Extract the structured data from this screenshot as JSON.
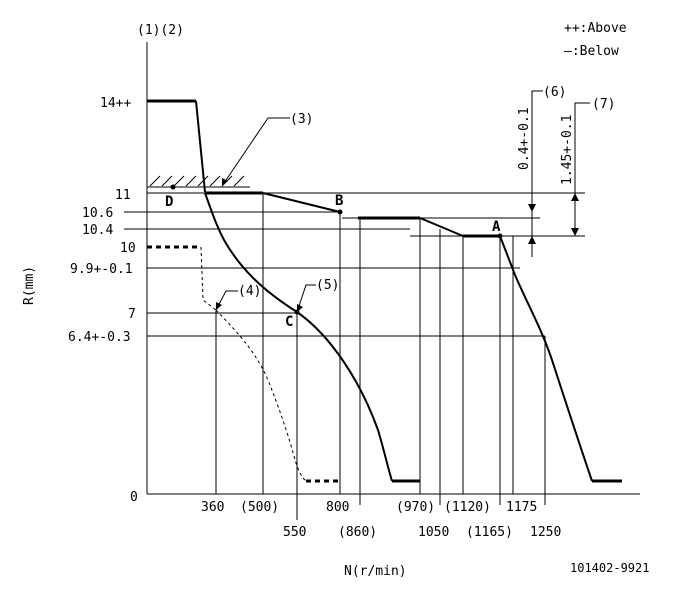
{
  "legend": {
    "above": "++:Above",
    "below": "—:Below"
  },
  "y_axis": {
    "label": "R(mm)",
    "top_label": "(1)(2)"
  },
  "x_axis": {
    "label": "N(r/min)"
  },
  "y_ticks": [
    "14++",
    "11",
    "10.6",
    "10.4",
    "10",
    "9.9+-0.1",
    "7",
    "6.4+-0.3",
    "0"
  ],
  "x_ticks_upper": [
    "360",
    "(500)",
    "800",
    "(970)",
    "(1120)",
    "1175"
  ],
  "x_ticks_lower": [
    "550",
    "(860)",
    "1050",
    "(1165)",
    "1250"
  ],
  "points": {
    "a": "A",
    "b": "B",
    "c": "C",
    "d": "D"
  },
  "callouts": {
    "c3": "(3)",
    "c4": "(4)",
    "c5": "(5)",
    "c6": "(6)",
    "c7": "(7)",
    "tol6": "0.4+-0.1",
    "tol7": "1.45+-0.1"
  },
  "footer_code": "101402-9921"
}
